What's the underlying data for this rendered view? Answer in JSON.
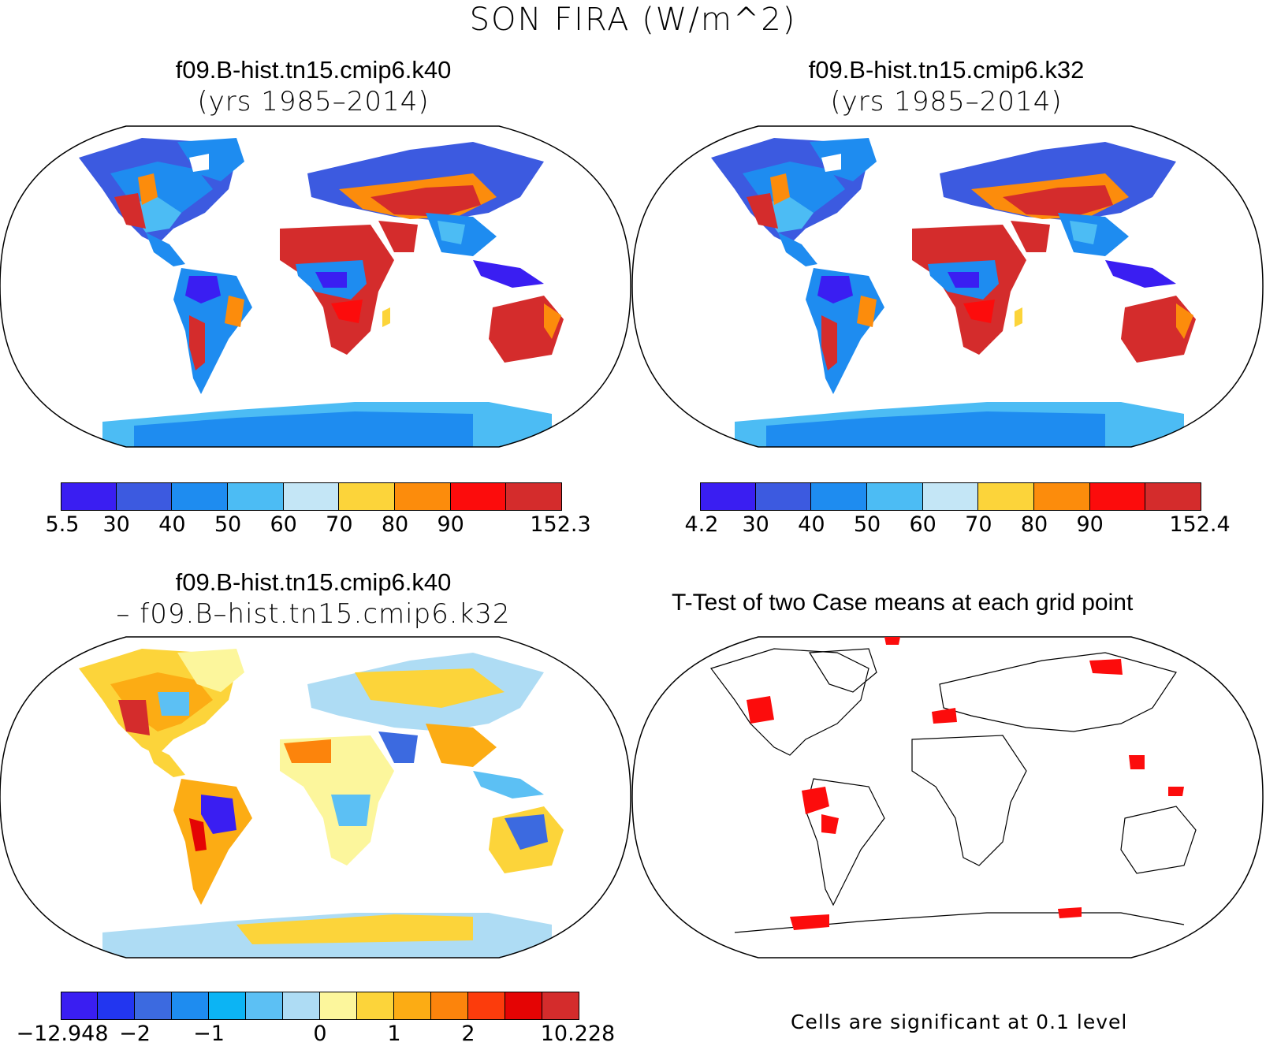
{
  "figure": {
    "title": "SON FIRA (W/m^2)"
  },
  "panels": [
    {
      "id": "k40",
      "title_line1": "f09.B-hist.tn15.cmip6.k40",
      "title_line2": "(yrs 1985–2014)",
      "colorbar": {
        "colors": [
          "#3a1ef2",
          "#3c5ae0",
          "#1e8cf0",
          "#4cbcf4",
          "#c4e6f6",
          "#fcd43a",
          "#fc8c0c",
          "#fc0c0c",
          "#d42c2c"
        ],
        "tick_labels": [
          "5.5",
          "30",
          "40",
          "50",
          "60",
          "70",
          "80",
          "90",
          "152.3"
        ]
      }
    },
    {
      "id": "k32",
      "title_line1": "f09.B-hist.tn15.cmip6.k32",
      "title_line2": "(yrs 1985–2014)",
      "colorbar": {
        "colors": [
          "#3a1ef2",
          "#3c5ae0",
          "#1e8cf0",
          "#4cbcf4",
          "#c4e6f6",
          "#fcd43a",
          "#fc8c0c",
          "#fc0c0c",
          "#d42c2c"
        ],
        "tick_labels": [
          "4.2",
          "30",
          "40",
          "50",
          "60",
          "70",
          "80",
          "90",
          "152.4"
        ]
      }
    },
    {
      "id": "diff",
      "title_line1": "f09.B-hist.tn15.cmip6.k40",
      "title_line2": "– f09.B–hist.tn15.cmip6.k32",
      "colorbar": {
        "colors": [
          "#3a1ef2",
          "#2236f0",
          "#3c6ae0",
          "#1e8cf0",
          "#0cb4f4",
          "#5cc0f4",
          "#aedcf4",
          "#fcf69c",
          "#fcd43a",
          "#fcac14",
          "#fc840c",
          "#fc3c0c",
          "#e40404",
          "#d42c2c"
        ],
        "tick_labels": [
          "−12.948",
          "−2",
          "−1",
          "0",
          "1",
          "2",
          "10.228"
        ]
      }
    },
    {
      "id": "ttest",
      "title_line1": "T-Test of two Case means at each grid point",
      "note": "Cells are significant at 0.1 level"
    }
  ]
}
